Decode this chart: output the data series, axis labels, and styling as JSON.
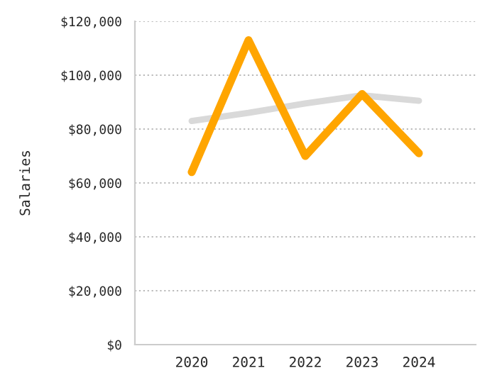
{
  "chart_data": {
    "type": "line",
    "ylabel": "Salaries",
    "categories": [
      "2020",
      "2021",
      "2022",
      "2023",
      "2024"
    ],
    "series": [
      {
        "color": "#d9d9d9",
        "values": [
          83000,
          86000,
          89500,
          92500,
          90500
        ]
      },
      {
        "color": "#ffa500",
        "values": [
          64000,
          113000,
          70000,
          93000,
          71000
        ]
      }
    ],
    "ylim": [
      0,
      120000
    ],
    "yticks": [
      {
        "value": 0,
        "label": "$0"
      },
      {
        "value": 20000,
        "label": "$20,000"
      },
      {
        "value": 40000,
        "label": "$40,000"
      },
      {
        "value": 60000,
        "label": "$60,000"
      },
      {
        "value": 80000,
        "label": "$80,000"
      },
      {
        "value": 100000,
        "label": "$100,000"
      },
      {
        "value": 120000,
        "label": "$120,000"
      }
    ],
    "grid": "y",
    "legend": false,
    "marker": "none",
    "line_style": "solid"
  }
}
